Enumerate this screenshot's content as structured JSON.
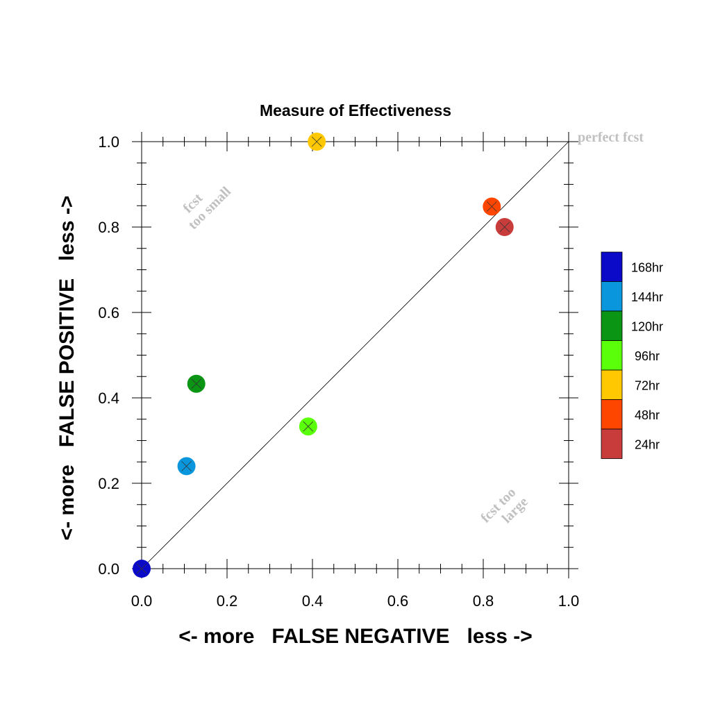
{
  "chart_data": {
    "type": "scatter",
    "title": "Measure of Effectiveness",
    "xlabel": "<- more   FALSE NEGATIVE   less ->",
    "ylabel": "<- more   FALSE POSITIVE   less ->",
    "xlim": [
      0,
      1
    ],
    "ylim": [
      0,
      1
    ],
    "x_ticks": [
      "0.0",
      "0.2",
      "0.4",
      "0.6",
      "0.8",
      "1.0"
    ],
    "y_ticks": [
      "0.0",
      "0.2",
      "0.4",
      "0.6",
      "0.8",
      "1.0"
    ],
    "grid": false,
    "legend_position": "right",
    "diagonal_line": true,
    "annotations": {
      "top_right": "perfect fcst",
      "upper_left_line1": "fcst",
      "upper_left_line2": "too small",
      "lower_right_line1": "fcst too",
      "lower_right_line2": "large"
    },
    "series": [
      {
        "name": "168hr",
        "color": "#0a0ac8",
        "x": 0.0,
        "y": 0.0
      },
      {
        "name": "144hr",
        "color": "#0a96dc",
        "x": 0.105,
        "y": 0.24
      },
      {
        "name": "120hr",
        "color": "#0a9614",
        "x": 0.128,
        "y": 0.433
      },
      {
        "name": "96hr",
        "color": "#5aff0a",
        "x": 0.39,
        "y": 0.333
      },
      {
        "name": "72hr",
        "color": "#ffc800",
        "x": 0.41,
        "y": 1.0
      },
      {
        "name": "48hr",
        "color": "#ff4600",
        "x": 0.82,
        "y": 0.848
      },
      {
        "name": "24hr",
        "color": "#c83c3c",
        "x": 0.85,
        "y": 0.8
      }
    ]
  }
}
